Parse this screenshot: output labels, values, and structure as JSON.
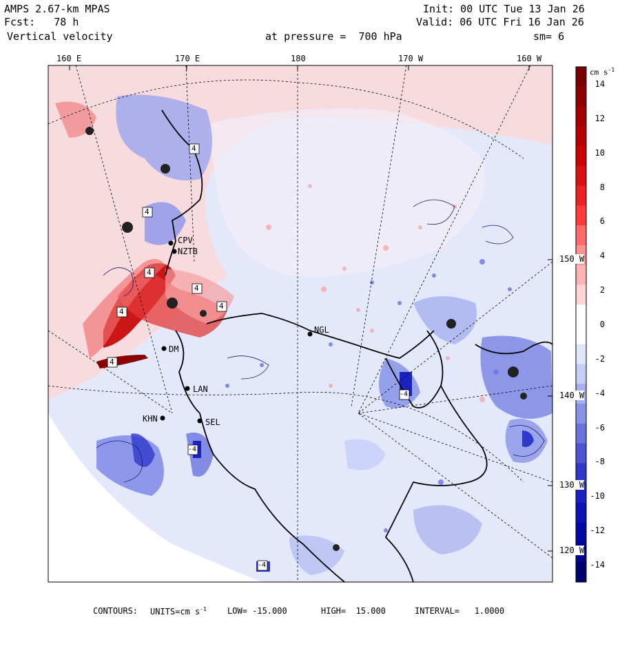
{
  "header": {
    "left": [
      "AMPS 2.67-km MPAS",
      "Fcst:   78 h",
      "Vertical velocity"
    ],
    "init": "Init: 00 UTC Tue 13 Jan 26",
    "valid": "Valid: 06 UTC Fri 16 Jan 26",
    "pressure": "at pressure =  700 hPa",
    "sm": "sm= 6"
  },
  "map": {
    "top_longitudes": [
      "160 E",
      "170 E",
      "180",
      "170 W",
      "160 W"
    ],
    "right_longitudes": [
      "150 W",
      "140 W",
      "130 W",
      "120 W"
    ],
    "stations": [
      {
        "name": "CPV"
      },
      {
        "name": "NZTB"
      },
      {
        "name": "NGL"
      },
      {
        "name": "LAN"
      },
      {
        "name": "KHN"
      },
      {
        "name": "SEL"
      },
      {
        "name": "DM"
      }
    ],
    "box_labels": [
      "4",
      "4",
      "4",
      "4",
      "4",
      "4",
      "4",
      "-4",
      "-4",
      "-4"
    ]
  },
  "colorbar": {
    "units": "cm s",
    "units_exp": "-1",
    "labels": [
      "14",
      "12",
      "10",
      "8",
      "6",
      "4",
      "2",
      "0",
      "-2",
      "-4",
      "-6",
      "-8",
      "-10",
      "-12",
      "-14"
    ],
    "colors": [
      "#7b0000",
      "#8f0000",
      "#a50000",
      "#b80000",
      "#cc0000",
      "#dd1111",
      "#ee2222",
      "#ff3b3b",
      "#ff6a6a",
      "#ff9090",
      "#ffb4b4",
      "#ffd6d6",
      "#ffffff",
      "#ffffff",
      "#e2e6fb",
      "#c6cdf7",
      "#a6b0f0",
      "#8793e8",
      "#6a74df",
      "#4d55d6",
      "#3038cc",
      "#1c22c2",
      "#0d14b6",
      "#0008a5",
      "#00068e",
      "#000470"
    ]
  },
  "footer": {
    "contours": "CONTOURS:",
    "units": "UNITS=cm s",
    "units_exp": "-1",
    "low": "LOW= -15.000",
    "high": "HIGH=  15.000",
    "interval": "INTERVAL=   1.0000"
  }
}
